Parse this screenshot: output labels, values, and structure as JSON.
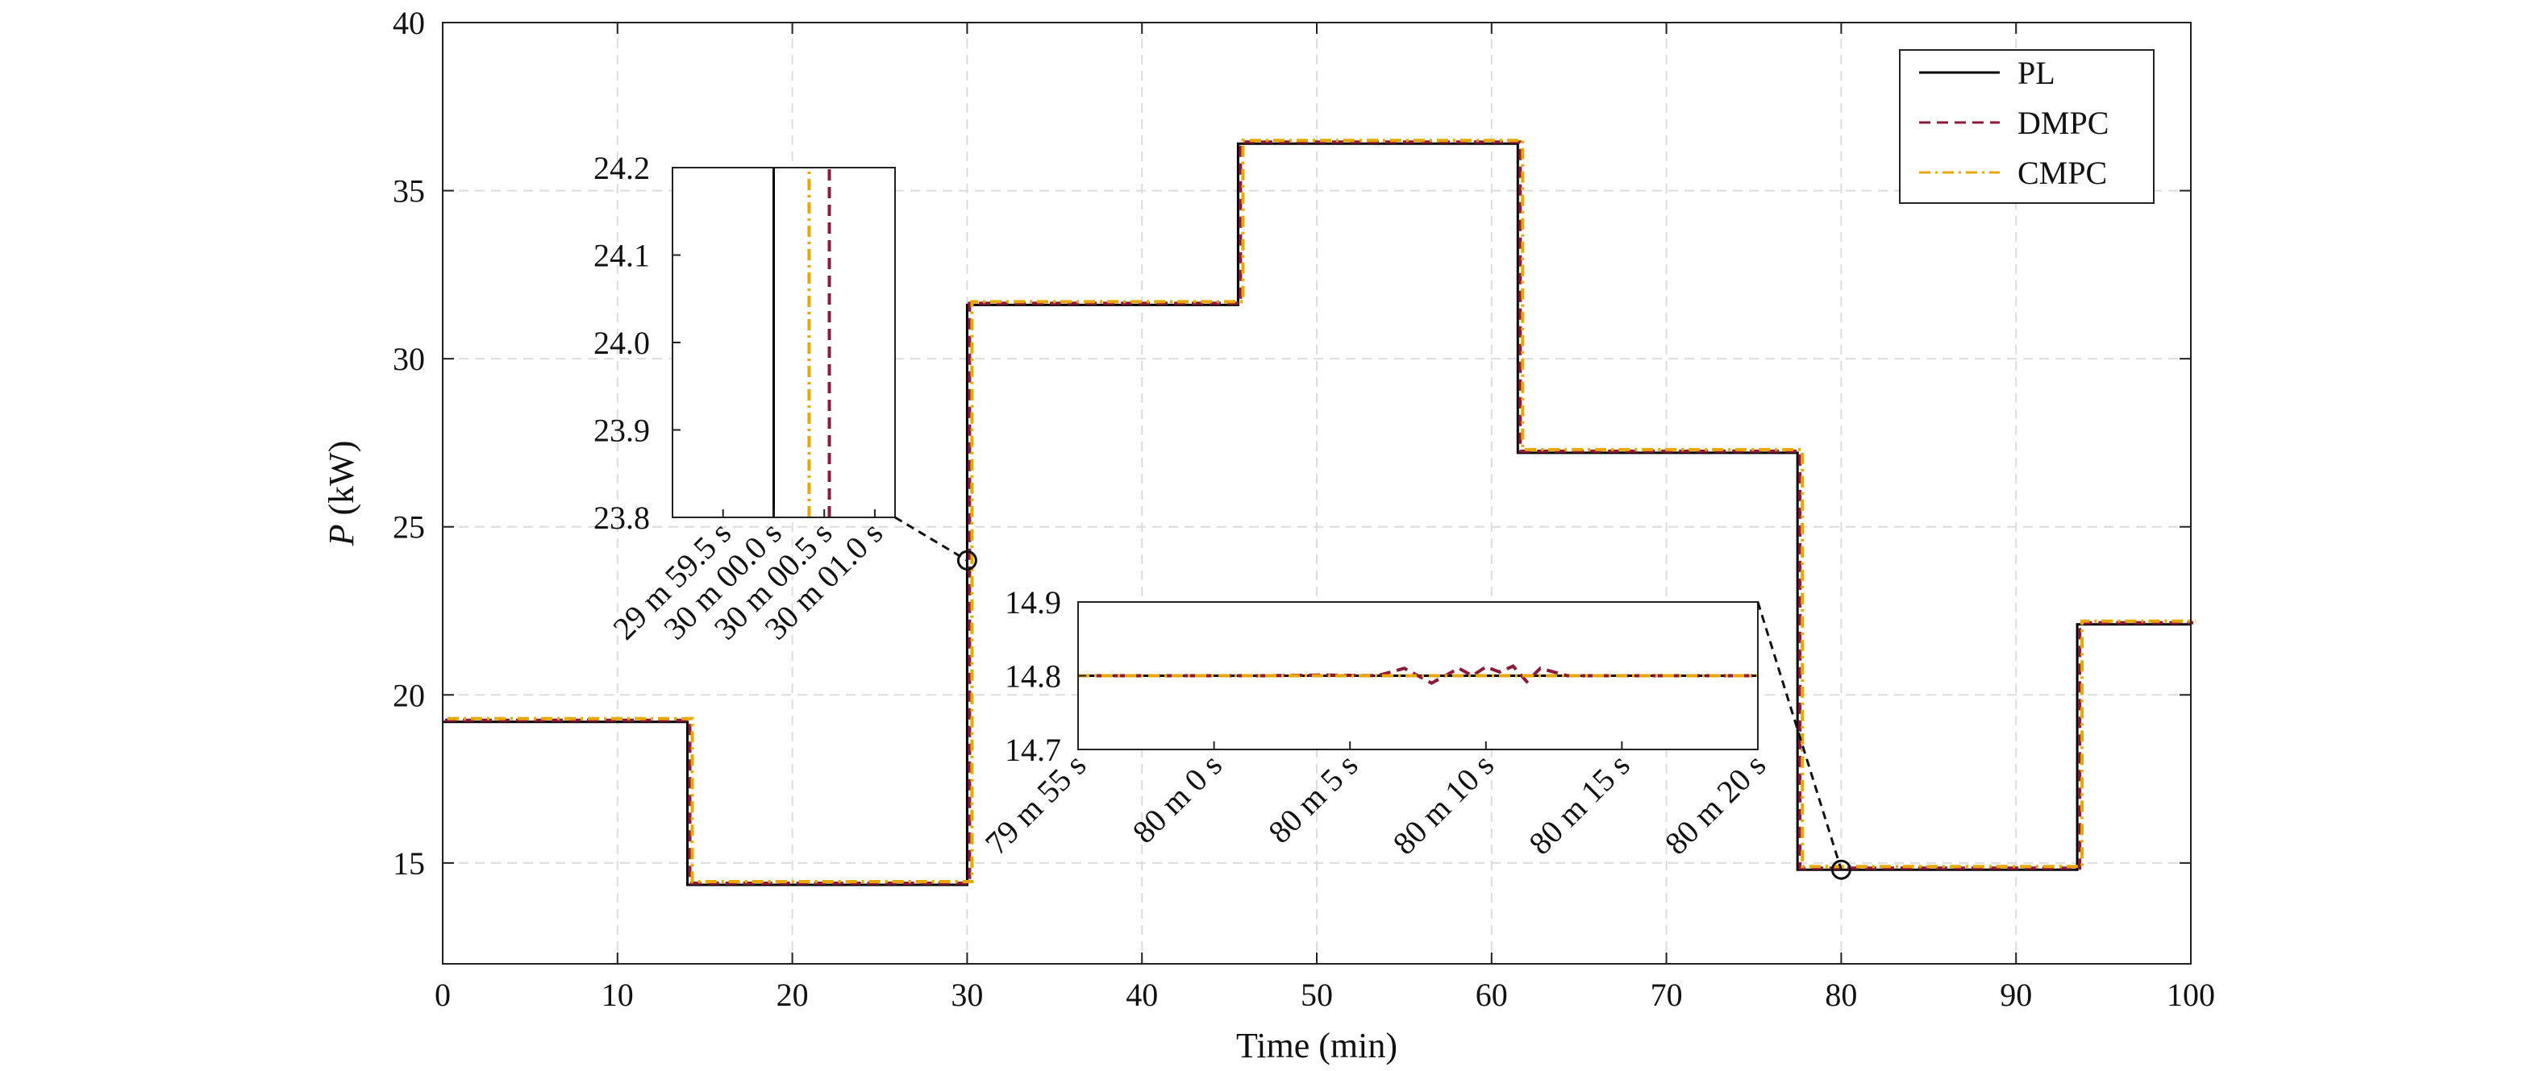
{
  "chart_data": {
    "type": "line",
    "title": "",
    "xlabel": "Time (min)",
    "ylabel_italic": "P",
    "ylabel_unit": " (kW)",
    "xlim": [
      0,
      100
    ],
    "ylim": [
      12,
      40
    ],
    "xticks": [
      0,
      10,
      20,
      30,
      40,
      50,
      60,
      70,
      80,
      90,
      100
    ],
    "yticks": [
      15,
      20,
      25,
      30,
      35,
      40
    ],
    "grid": true,
    "legend_position": "top-right",
    "series": [
      {
        "name": "PL",
        "color": "#000000",
        "style": "solid",
        "x": [
          0,
          14,
          14,
          30,
          30,
          45.5,
          45.5,
          61.5,
          61.5,
          77.5,
          77.5,
          93.5,
          93.5,
          100
        ],
        "y": [
          19.2,
          19.2,
          14.35,
          14.35,
          31.6,
          31.6,
          36.4,
          36.4,
          27.2,
          27.2,
          14.8,
          14.8,
          22.1,
          22.1
        ]
      },
      {
        "name": "DMPC",
        "color": "#8b1a3a",
        "style": "dashed",
        "x": [
          0,
          14,
          14,
          30,
          30,
          45.5,
          45.5,
          61.5,
          61.5,
          77.5,
          77.5,
          93.5,
          93.5,
          100
        ],
        "y": [
          19.2,
          19.2,
          14.35,
          14.35,
          31.6,
          31.6,
          36.4,
          36.4,
          27.2,
          27.2,
          14.8,
          14.8,
          22.1,
          22.1
        ]
      },
      {
        "name": "CMPC",
        "color": "#e8a800",
        "style": "dashdot",
        "x": [
          0,
          14,
          14,
          30,
          30,
          45.5,
          45.5,
          61.5,
          61.5,
          77.5,
          77.5,
          93.5,
          93.5,
          100
        ],
        "y": [
          19.2,
          19.2,
          14.35,
          14.35,
          31.6,
          31.6,
          36.4,
          36.4,
          27.2,
          27.2,
          14.8,
          14.8,
          22.1,
          22.1
        ]
      }
    ],
    "insets": [
      {
        "xlim": [
          -1.0,
          1.2
        ],
        "ylim": [
          23.8,
          24.2
        ],
        "xticks": [
          -0.5,
          0,
          0.5,
          1.0
        ],
        "xtick_labels": [
          "29 m 59.5 s",
          "30 m 00.0 s",
          "30 m 00.5 s",
          "30 m 01.0 s"
        ],
        "yticks": [
          23.8,
          23.9,
          24.0,
          24.1,
          24.2
        ],
        "ytick_labels": [
          "23.8",
          "23.9",
          "24.0",
          "24.1",
          "24.2"
        ],
        "zoom_point": [
          30,
          24
        ],
        "series": [
          {
            "name": "PL",
            "x": [
              0.0,
              0.0
            ],
            "y": [
              23.8,
              24.2
            ]
          },
          {
            "name": "CMPC",
            "x": [
              0.35,
              0.35
            ],
            "y": [
              23.8,
              24.2
            ]
          },
          {
            "name": "DMPC",
            "x": [
              0.55,
              0.55
            ],
            "y": [
              23.8,
              24.2
            ]
          }
        ]
      },
      {
        "xlim": [
          -5,
          20
        ],
        "ylim": [
          14.7,
          14.9
        ],
        "xticks": [
          -5,
          0,
          5,
          10,
          15,
          20
        ],
        "xtick_labels": [
          "79 m 55 s",
          "80 m 0 s",
          "80 m 5 s",
          "80 m 10 s",
          "80 m 15 s",
          "80 m 20 s"
        ],
        "yticks": [
          14.7,
          14.8,
          14.9
        ],
        "ytick_labels": [
          "14.7",
          "14.8",
          "14.9"
        ],
        "zoom_point": [
          80,
          14.8
        ],
        "series": [
          {
            "name": "PL",
            "x": [
              -5,
              20
            ],
            "y": [
              14.8,
              14.8
            ]
          },
          {
            "name": "DMPC",
            "x": [
              -5,
              2,
              4,
              6,
              7,
              8,
              9,
              9.5,
              10,
              10.5,
              11,
              11.5,
              12,
              12.5,
              13,
              14,
              20
            ],
            "y": [
              14.8,
              14.8,
              14.801,
              14.8,
              14.81,
              14.79,
              14.81,
              14.8,
              14.812,
              14.805,
              14.813,
              14.792,
              14.81,
              14.805,
              14.8,
              14.8,
              14.8
            ]
          },
          {
            "name": "CMPC",
            "x": [
              -5,
              20
            ],
            "y": [
              14.8,
              14.8
            ]
          }
        ]
      }
    ]
  }
}
